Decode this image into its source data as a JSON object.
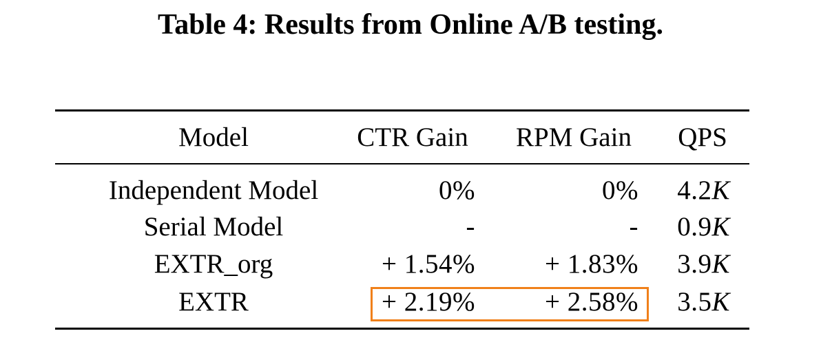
{
  "caption": "Table 4: Results from Online A/B testing.",
  "columns": {
    "model": "Model",
    "ctr": "CTR Gain",
    "rpm": "RPM Gain",
    "qps": "QPS"
  },
  "rows": [
    {
      "model": "Independent Model",
      "ctr": "0%",
      "rpm": "0%",
      "qps_value": "4.2",
      "qps_unit": "K"
    },
    {
      "model": "Serial Model",
      "ctr": "-",
      "rpm": "-",
      "qps_value": "0.9",
      "qps_unit": "K"
    },
    {
      "model": "EXTR_org",
      "ctr": "+ 1.54%",
      "rpm": "+ 1.83%",
      "qps_value": "3.9",
      "qps_unit": "K"
    },
    {
      "model": "EXTR",
      "ctr": "+ 2.19%",
      "rpm": "+ 2.58%",
      "qps_value": "3.5",
      "qps_unit": "K"
    }
  ],
  "highlight_color": "#f0801a"
}
